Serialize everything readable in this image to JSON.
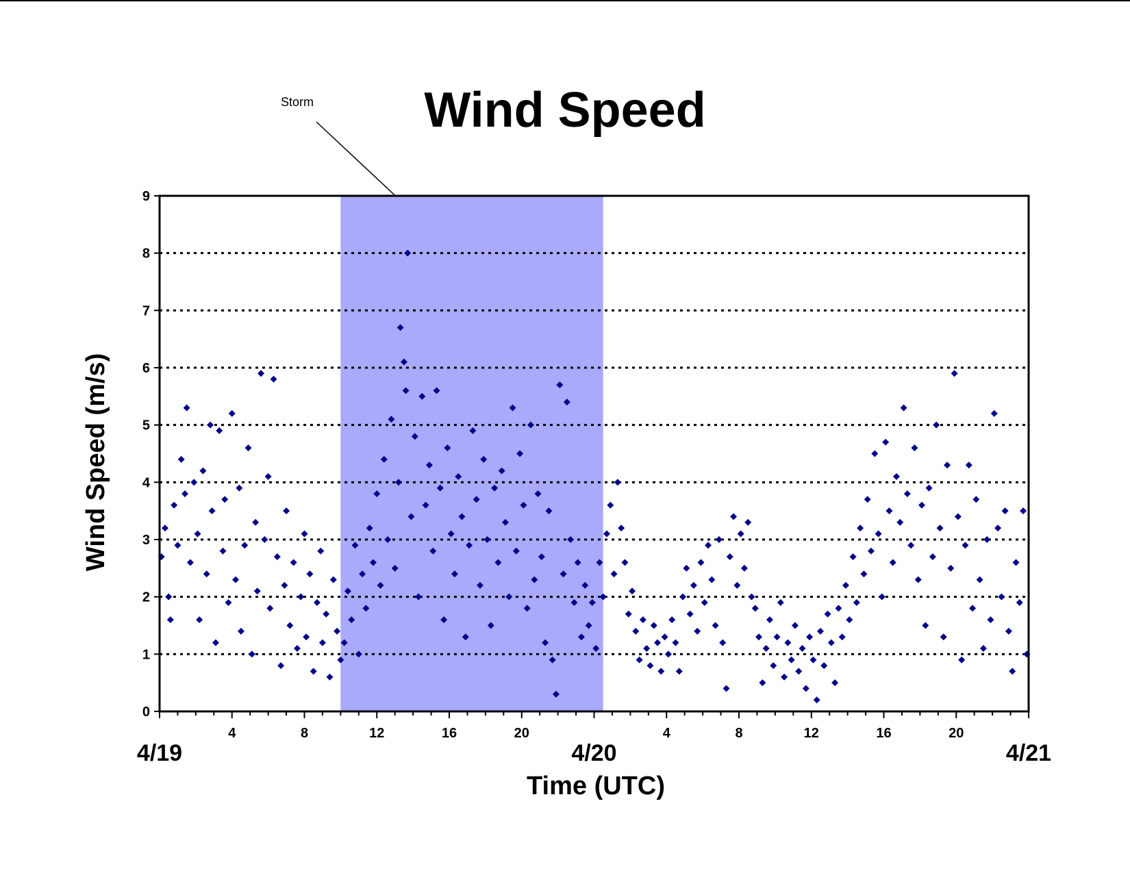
{
  "chart_data": {
    "type": "scatter",
    "title": "Wind Speed",
    "xlabel": "Time (UTC)",
    "ylabel": "Wind Speed (m/s)",
    "xlim": [
      0,
      48
    ],
    "ylim": [
      0,
      9
    ],
    "yticks": [
      0,
      1,
      2,
      3,
      4,
      5,
      6,
      7,
      8,
      9
    ],
    "hour_ticks": [
      {
        "x": 4,
        "label": "4"
      },
      {
        "x": 8,
        "label": "8"
      },
      {
        "x": 12,
        "label": "12"
      },
      {
        "x": 16,
        "label": "16"
      },
      {
        "x": 20,
        "label": "20"
      },
      {
        "x": 28,
        "label": "4"
      },
      {
        "x": 32,
        "label": "8"
      },
      {
        "x": 36,
        "label": "12"
      },
      {
        "x": 40,
        "label": "16"
      },
      {
        "x": 44,
        "label": "20"
      }
    ],
    "date_ticks": [
      {
        "x": 0,
        "label": "4/19"
      },
      {
        "x": 24,
        "label": "4/20"
      },
      {
        "x": 48,
        "label": "4/21"
      }
    ],
    "grid": "horizontal dotted",
    "shaded_region": {
      "x0": 10,
      "x1": 24.5,
      "label": "Storm",
      "color": "#aaaafc"
    },
    "marker_color": "#00008b",
    "series": [
      {
        "points": [
          [
            0.1,
            2.7
          ],
          [
            0.3,
            3.2
          ],
          [
            0.5,
            2.0
          ],
          [
            0.6,
            1.6
          ],
          [
            0.8,
            3.6
          ],
          [
            1.0,
            2.9
          ],
          [
            1.2,
            4.4
          ],
          [
            1.4,
            3.8
          ],
          [
            1.5,
            5.3
          ],
          [
            1.7,
            2.6
          ],
          [
            1.9,
            4.0
          ],
          [
            2.1,
            3.1
          ],
          [
            2.2,
            1.6
          ],
          [
            2.4,
            4.2
          ],
          [
            2.6,
            2.4
          ],
          [
            2.8,
            5.0
          ],
          [
            2.9,
            3.5
          ],
          [
            3.1,
            1.2
          ],
          [
            3.3,
            4.9
          ],
          [
            3.5,
            2.8
          ],
          [
            3.6,
            3.7
          ],
          [
            3.8,
            1.9
          ],
          [
            4.0,
            5.2
          ],
          [
            4.2,
            2.3
          ],
          [
            4.4,
            3.9
          ],
          [
            4.5,
            1.4
          ],
          [
            4.7,
            2.9
          ],
          [
            4.9,
            4.6
          ],
          [
            5.1,
            1.0
          ],
          [
            5.3,
            3.3
          ],
          [
            5.4,
            2.1
          ],
          [
            5.6,
            5.9
          ],
          [
            5.8,
            3.0
          ],
          [
            6.0,
            4.1
          ],
          [
            6.1,
            1.8
          ],
          [
            6.3,
            5.8
          ],
          [
            6.5,
            2.7
          ],
          [
            6.7,
            0.8
          ],
          [
            6.9,
            2.2
          ],
          [
            7.0,
            3.5
          ],
          [
            7.2,
            1.5
          ],
          [
            7.4,
            2.6
          ],
          [
            7.6,
            1.1
          ],
          [
            7.8,
            2.0
          ],
          [
            8.0,
            3.1
          ],
          [
            8.1,
            1.3
          ],
          [
            8.3,
            2.4
          ],
          [
            8.5,
            0.7
          ],
          [
            8.7,
            1.9
          ],
          [
            8.9,
            2.8
          ],
          [
            9.0,
            1.2
          ],
          [
            9.2,
            1.7
          ],
          [
            9.4,
            0.6
          ],
          [
            9.6,
            2.3
          ],
          [
            9.8,
            1.4
          ],
          [
            10.0,
            0.9
          ],
          [
            10.2,
            1.2
          ],
          [
            10.4,
            2.1
          ],
          [
            10.6,
            1.6
          ],
          [
            10.8,
            2.9
          ],
          [
            11.0,
            1.0
          ],
          [
            11.2,
            2.4
          ],
          [
            11.4,
            1.8
          ],
          [
            11.6,
            3.2
          ],
          [
            11.8,
            2.6
          ],
          [
            12.0,
            3.8
          ],
          [
            12.2,
            2.2
          ],
          [
            12.4,
            4.4
          ],
          [
            12.6,
            3.0
          ],
          [
            12.8,
            5.1
          ],
          [
            13.0,
            2.5
          ],
          [
            13.2,
            4.0
          ],
          [
            13.3,
            6.7
          ],
          [
            13.5,
            6.1
          ],
          [
            13.6,
            5.6
          ],
          [
            13.7,
            8.0
          ],
          [
            13.9,
            3.4
          ],
          [
            14.1,
            4.8
          ],
          [
            14.3,
            2.0
          ],
          [
            14.5,
            5.5
          ],
          [
            14.7,
            3.6
          ],
          [
            14.9,
            4.3
          ],
          [
            15.1,
            2.8
          ],
          [
            15.3,
            5.6
          ],
          [
            15.5,
            3.9
          ],
          [
            15.7,
            1.6
          ],
          [
            15.9,
            4.6
          ],
          [
            16.1,
            3.1
          ],
          [
            16.3,
            2.4
          ],
          [
            16.5,
            4.1
          ],
          [
            16.7,
            3.4
          ],
          [
            16.9,
            1.3
          ],
          [
            17.1,
            2.9
          ],
          [
            17.3,
            4.9
          ],
          [
            17.5,
            3.7
          ],
          [
            17.7,
            2.2
          ],
          [
            17.9,
            4.4
          ],
          [
            18.1,
            3.0
          ],
          [
            18.3,
            1.5
          ],
          [
            18.5,
            3.9
          ],
          [
            18.7,
            2.6
          ],
          [
            18.9,
            4.2
          ],
          [
            19.1,
            3.3
          ],
          [
            19.3,
            2.0
          ],
          [
            19.5,
            5.3
          ],
          [
            19.7,
            2.8
          ],
          [
            19.9,
            4.5
          ],
          [
            20.1,
            3.6
          ],
          [
            20.3,
            1.8
          ],
          [
            20.5,
            5.0
          ],
          [
            20.7,
            2.3
          ],
          [
            20.9,
            3.8
          ],
          [
            21.1,
            2.7
          ],
          [
            21.3,
            1.2
          ],
          [
            21.5,
            3.5
          ],
          [
            21.7,
            0.9
          ],
          [
            21.9,
            0.3
          ],
          [
            22.1,
            5.7
          ],
          [
            22.3,
            2.4
          ],
          [
            22.5,
            5.4
          ],
          [
            22.7,
            3.0
          ],
          [
            22.9,
            1.9
          ],
          [
            23.1,
            2.6
          ],
          [
            23.3,
            1.3
          ],
          [
            23.5,
            2.2
          ],
          [
            23.7,
            1.5
          ],
          [
            23.9,
            1.9
          ],
          [
            24.1,
            1.1
          ],
          [
            24.3,
            2.6
          ],
          [
            24.5,
            2.0
          ],
          [
            24.7,
            3.1
          ],
          [
            24.9,
            3.6
          ],
          [
            25.1,
            2.4
          ],
          [
            25.3,
            4.0
          ],
          [
            25.5,
            3.2
          ],
          [
            25.7,
            2.6
          ],
          [
            25.9,
            1.7
          ],
          [
            26.1,
            2.1
          ],
          [
            26.3,
            1.4
          ],
          [
            26.5,
            0.9
          ],
          [
            26.7,
            1.6
          ],
          [
            26.9,
            1.1
          ],
          [
            27.1,
            0.8
          ],
          [
            27.3,
            1.5
          ],
          [
            27.5,
            1.2
          ],
          [
            27.7,
            0.7
          ],
          [
            27.9,
            1.3
          ],
          [
            28.1,
            1.0
          ],
          [
            28.3,
            1.6
          ],
          [
            28.5,
            1.2
          ],
          [
            28.7,
            0.7
          ],
          [
            28.9,
            2.0
          ],
          [
            29.1,
            2.5
          ],
          [
            29.3,
            1.7
          ],
          [
            29.5,
            2.2
          ],
          [
            29.7,
            1.4
          ],
          [
            29.9,
            2.6
          ],
          [
            30.1,
            1.9
          ],
          [
            30.3,
            2.9
          ],
          [
            30.5,
            2.3
          ],
          [
            30.7,
            1.5
          ],
          [
            30.9,
            3.0
          ],
          [
            31.1,
            1.2
          ],
          [
            31.3,
            0.4
          ],
          [
            31.5,
            2.7
          ],
          [
            31.7,
            3.4
          ],
          [
            31.9,
            2.2
          ],
          [
            32.1,
            3.1
          ],
          [
            32.3,
            2.5
          ],
          [
            32.5,
            3.3
          ],
          [
            32.7,
            2.0
          ],
          [
            32.9,
            1.8
          ],
          [
            33.1,
            1.3
          ],
          [
            33.3,
            0.5
          ],
          [
            33.5,
            1.1
          ],
          [
            33.7,
            1.6
          ],
          [
            33.9,
            0.8
          ],
          [
            34.1,
            1.3
          ],
          [
            34.3,
            1.9
          ],
          [
            34.5,
            0.6
          ],
          [
            34.7,
            1.2
          ],
          [
            34.9,
            0.9
          ],
          [
            35.1,
            1.5
          ],
          [
            35.3,
            0.7
          ],
          [
            35.5,
            1.1
          ],
          [
            35.7,
            0.4
          ],
          [
            35.9,
            1.3
          ],
          [
            36.1,
            0.9
          ],
          [
            36.3,
            0.2
          ],
          [
            36.5,
            1.4
          ],
          [
            36.7,
            0.8
          ],
          [
            36.9,
            1.7
          ],
          [
            37.1,
            1.2
          ],
          [
            37.3,
            0.5
          ],
          [
            37.5,
            1.8
          ],
          [
            37.7,
            1.3
          ],
          [
            37.9,
            2.2
          ],
          [
            38.1,
            1.6
          ],
          [
            38.3,
            2.7
          ],
          [
            38.5,
            1.9
          ],
          [
            38.7,
            3.2
          ],
          [
            38.9,
            2.4
          ],
          [
            39.1,
            3.7
          ],
          [
            39.3,
            2.8
          ],
          [
            39.5,
            4.5
          ],
          [
            39.7,
            3.1
          ],
          [
            39.9,
            2.0
          ],
          [
            40.1,
            4.7
          ],
          [
            40.3,
            3.5
          ],
          [
            40.5,
            2.6
          ],
          [
            40.7,
            4.1
          ],
          [
            40.9,
            3.3
          ],
          [
            41.1,
            5.3
          ],
          [
            41.3,
            3.8
          ],
          [
            41.5,
            2.9
          ],
          [
            41.7,
            4.6
          ],
          [
            41.9,
            2.3
          ],
          [
            42.1,
            3.6
          ],
          [
            42.3,
            1.5
          ],
          [
            42.5,
            3.9
          ],
          [
            42.7,
            2.7
          ],
          [
            42.9,
            5.0
          ],
          [
            43.1,
            3.2
          ],
          [
            43.3,
            1.3
          ],
          [
            43.5,
            4.3
          ],
          [
            43.7,
            2.5
          ],
          [
            43.9,
            5.9
          ],
          [
            44.1,
            3.4
          ],
          [
            44.3,
            0.9
          ],
          [
            44.5,
            2.9
          ],
          [
            44.7,
            4.3
          ],
          [
            44.9,
            1.8
          ],
          [
            45.1,
            3.7
          ],
          [
            45.3,
            2.3
          ],
          [
            45.5,
            1.1
          ],
          [
            45.7,
            3.0
          ],
          [
            45.9,
            1.6
          ],
          [
            46.1,
            5.2
          ],
          [
            46.3,
            3.2
          ],
          [
            46.5,
            2.0
          ],
          [
            46.7,
            3.5
          ],
          [
            46.9,
            1.4
          ],
          [
            47.1,
            0.7
          ],
          [
            47.3,
            2.6
          ],
          [
            47.5,
            1.9
          ],
          [
            47.7,
            3.5
          ],
          [
            47.9,
            1.0
          ]
        ]
      }
    ]
  }
}
